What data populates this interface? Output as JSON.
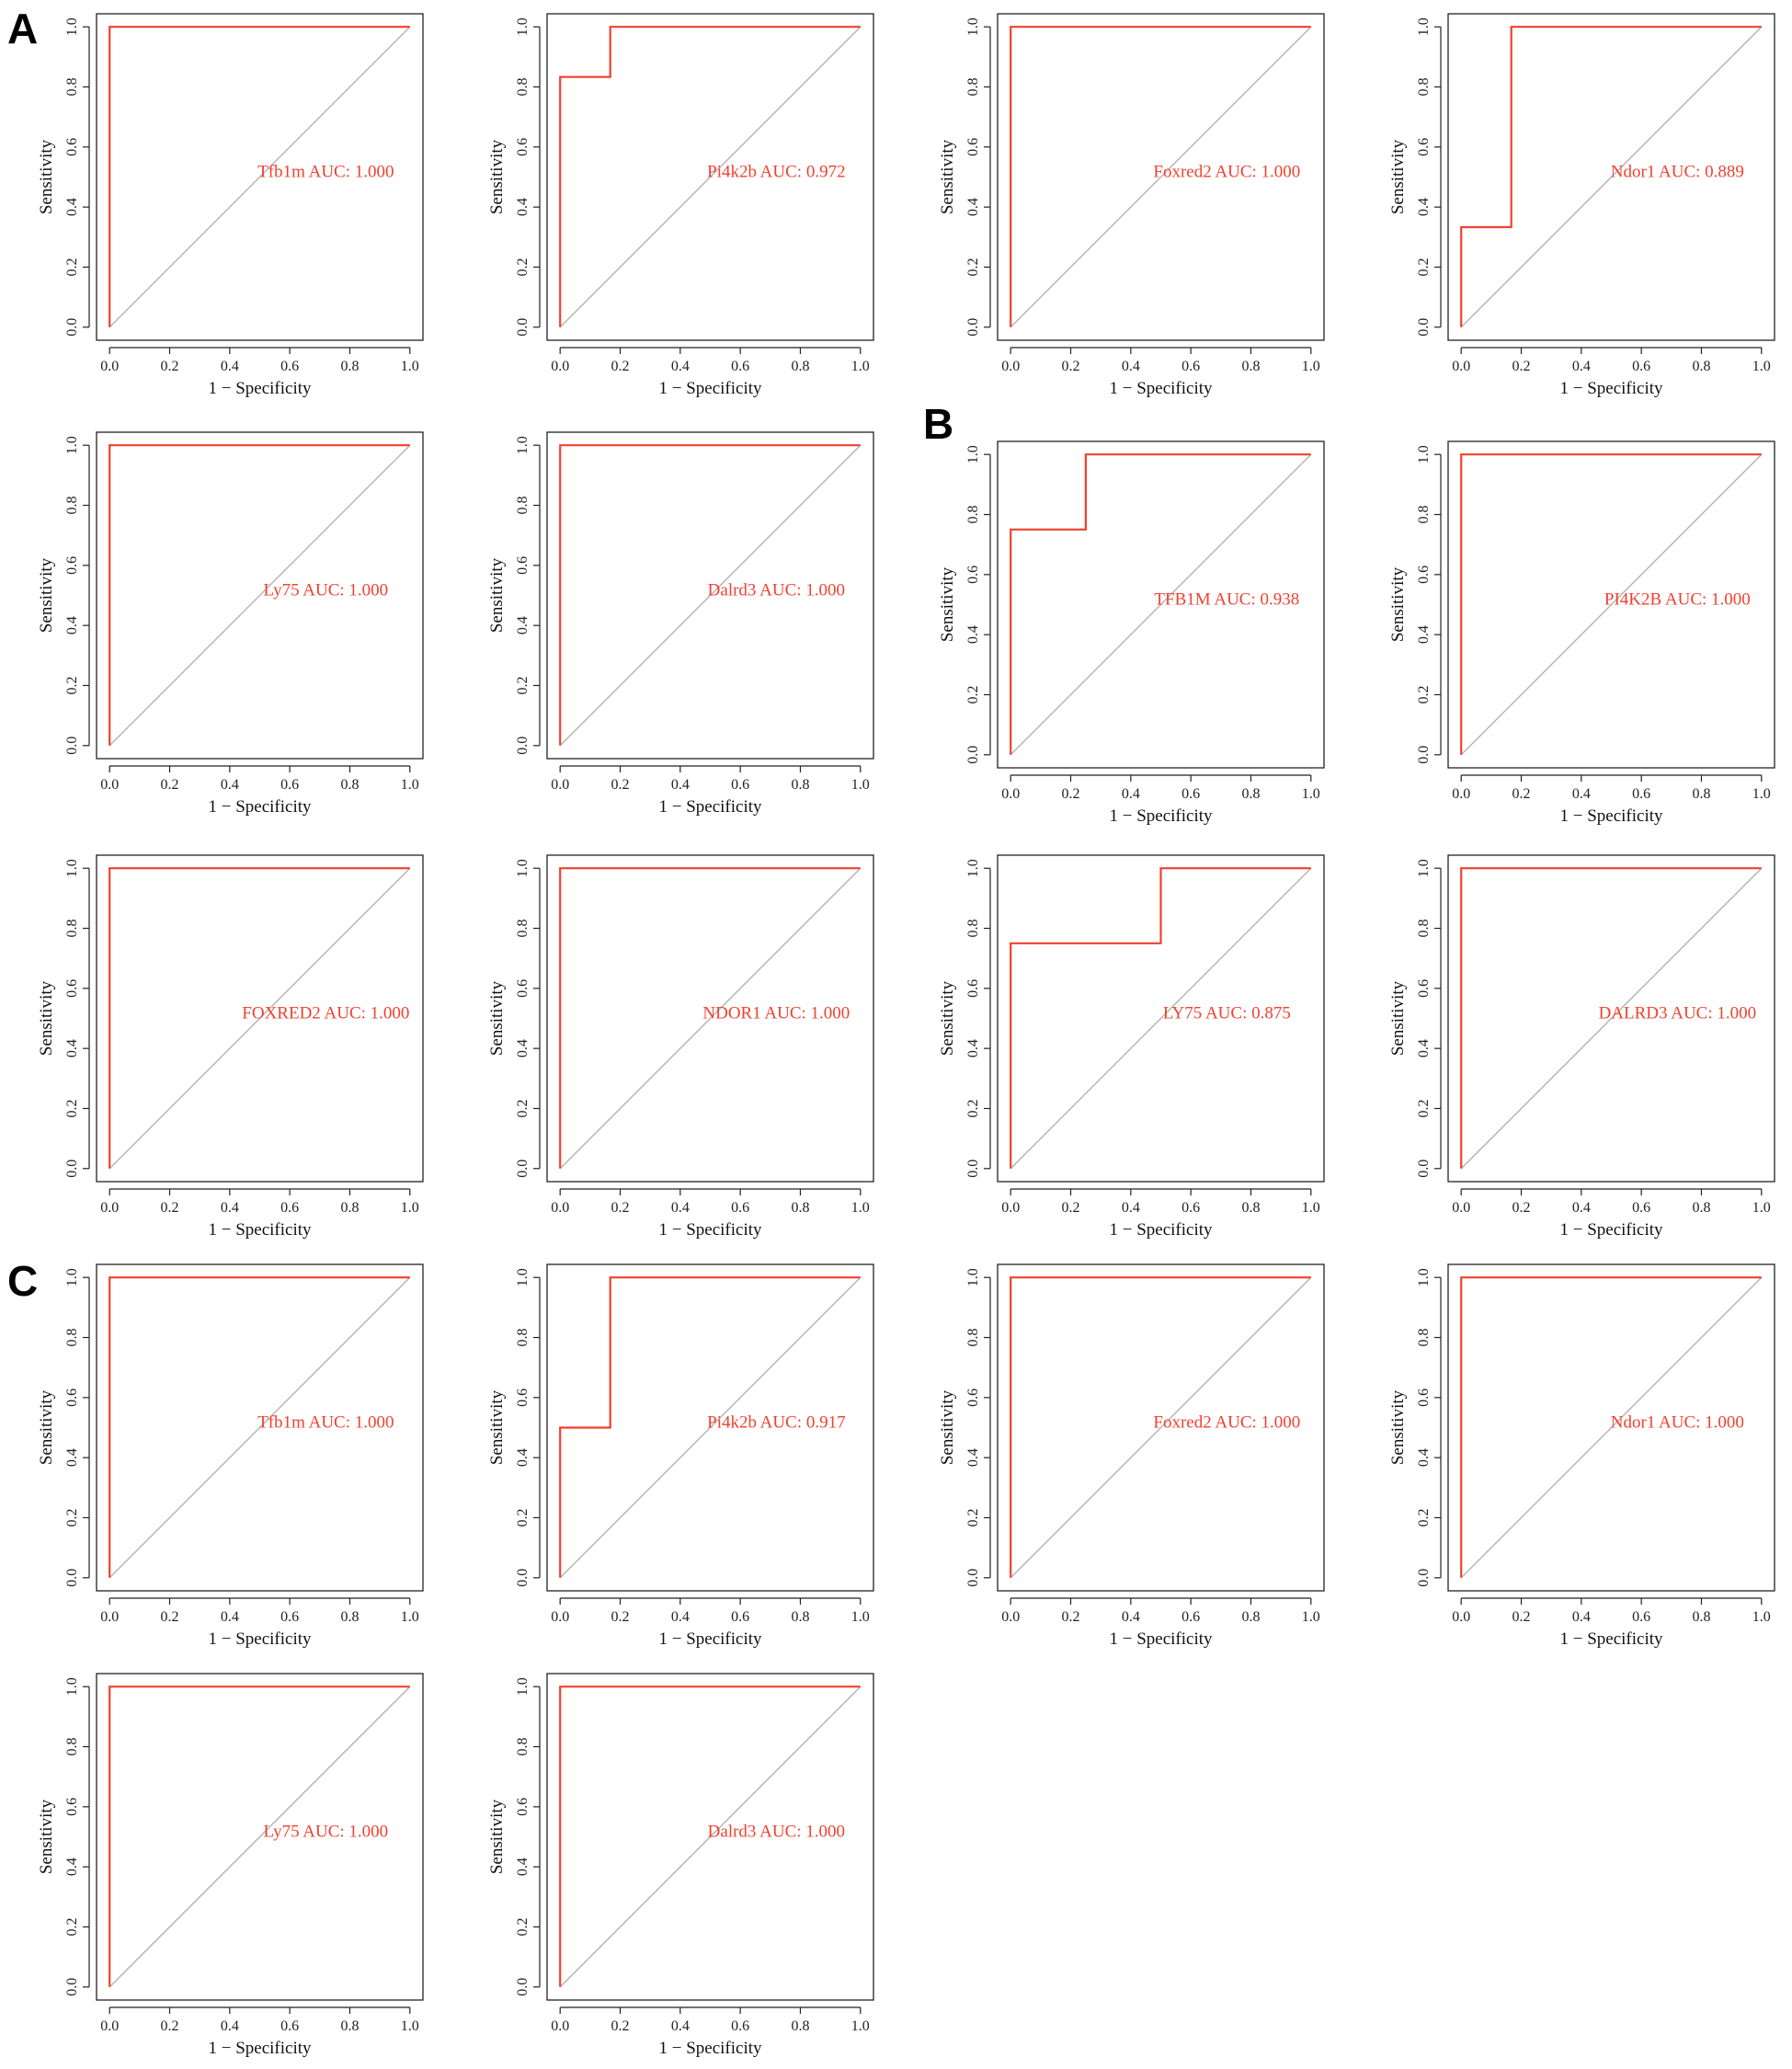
{
  "panel_labels": [
    "A",
    "B",
    "C"
  ],
  "colors": {
    "roc": "#f0412f",
    "diagonal": "#b3b3b3",
    "axis": "#222222",
    "frame": "#222222"
  },
  "chart_data": [
    {
      "type": "line",
      "panel": "A",
      "title": "",
      "xlabel": "1 − Specificity",
      "ylabel": "Sensitivity",
      "xlim": [
        0,
        1
      ],
      "ylim": [
        0,
        1
      ],
      "xticks": [
        "0.0",
        "0.2",
        "0.4",
        "0.6",
        "0.8",
        "1.0"
      ],
      "yticks": [
        "0.0",
        "0.2",
        "0.4",
        "0.6",
        "0.8",
        "1.0"
      ],
      "annotation": "Tfb1m AUC: 1.000",
      "series": [
        {
          "x": [
            0,
            0,
            1
          ],
          "y": [
            0,
            1,
            1
          ]
        }
      ],
      "reference_line": {
        "x": [
          0,
          1
        ],
        "y": [
          0,
          1
        ]
      }
    },
    {
      "type": "line",
      "panel": "A",
      "title": "",
      "xlabel": "1 − Specificity",
      "ylabel": "Sensitivity",
      "xlim": [
        0,
        1
      ],
      "ylim": [
        0,
        1
      ],
      "xticks": [
        "0.0",
        "0.2",
        "0.4",
        "0.6",
        "0.8",
        "1.0"
      ],
      "yticks": [
        "0.0",
        "0.2",
        "0.4",
        "0.6",
        "0.8",
        "1.0"
      ],
      "annotation": "Pi4k2b AUC: 0.972",
      "series": [
        {
          "x": [
            0,
            0,
            0.167,
            0.167,
            1
          ],
          "y": [
            0,
            0.833,
            0.833,
            1,
            1
          ]
        }
      ],
      "reference_line": {
        "x": [
          0,
          1
        ],
        "y": [
          0,
          1
        ]
      }
    },
    {
      "type": "line",
      "panel": "A",
      "title": "",
      "xlabel": "1 − Specificity",
      "ylabel": "Sensitivity",
      "xlim": [
        0,
        1
      ],
      "ylim": [
        0,
        1
      ],
      "xticks": [
        "0.0",
        "0.2",
        "0.4",
        "0.6",
        "0.8",
        "1.0"
      ],
      "yticks": [
        "0.0",
        "0.2",
        "0.4",
        "0.6",
        "0.8",
        "1.0"
      ],
      "annotation": "Foxred2 AUC: 1.000",
      "series": [
        {
          "x": [
            0,
            0,
            1
          ],
          "y": [
            0,
            1,
            1
          ]
        }
      ],
      "reference_line": {
        "x": [
          0,
          1
        ],
        "y": [
          0,
          1
        ]
      }
    },
    {
      "type": "line",
      "panel": "A",
      "title": "",
      "xlabel": "1 − Specificity",
      "ylabel": "Sensitivity",
      "xlim": [
        0,
        1
      ],
      "ylim": [
        0,
        1
      ],
      "xticks": [
        "0.0",
        "0.2",
        "0.4",
        "0.6",
        "0.8",
        "1.0"
      ],
      "yticks": [
        "0.0",
        "0.2",
        "0.4",
        "0.6",
        "0.8",
        "1.0"
      ],
      "annotation": "Ndor1 AUC: 0.889",
      "series": [
        {
          "x": [
            0,
            0,
            0.167,
            0.167,
            1
          ],
          "y": [
            0,
            0.333,
            0.333,
            1,
            1
          ]
        }
      ],
      "reference_line": {
        "x": [
          0,
          1
        ],
        "y": [
          0,
          1
        ]
      }
    },
    {
      "type": "line",
      "panel": "A",
      "title": "",
      "xlabel": "1 − Specificity",
      "ylabel": "Sensitivity",
      "xlim": [
        0,
        1
      ],
      "ylim": [
        0,
        1
      ],
      "xticks": [
        "0.0",
        "0.2",
        "0.4",
        "0.6",
        "0.8",
        "1.0"
      ],
      "yticks": [
        "0.0",
        "0.2",
        "0.4",
        "0.6",
        "0.8",
        "1.0"
      ],
      "annotation": "Ly75 AUC: 1.000",
      "series": [
        {
          "x": [
            0,
            0,
            1
          ],
          "y": [
            0,
            1,
            1
          ]
        }
      ],
      "reference_line": {
        "x": [
          0,
          1
        ],
        "y": [
          0,
          1
        ]
      }
    },
    {
      "type": "line",
      "panel": "A",
      "title": "",
      "xlabel": "1 − Specificity",
      "ylabel": "Sensitivity",
      "xlim": [
        0,
        1
      ],
      "ylim": [
        0,
        1
      ],
      "xticks": [
        "0.0",
        "0.2",
        "0.4",
        "0.6",
        "0.8",
        "1.0"
      ],
      "yticks": [
        "0.0",
        "0.2",
        "0.4",
        "0.6",
        "0.8",
        "1.0"
      ],
      "annotation": "Dalrd3 AUC: 1.000",
      "series": [
        {
          "x": [
            0,
            0,
            1
          ],
          "y": [
            0,
            1,
            1
          ]
        }
      ],
      "reference_line": {
        "x": [
          0,
          1
        ],
        "y": [
          0,
          1
        ]
      }
    },
    {
      "type": "line",
      "panel": "B",
      "title": "",
      "xlabel": "1 − Specificity",
      "ylabel": "Sensitivity",
      "xlim": [
        0,
        1
      ],
      "ylim": [
        0,
        1
      ],
      "xticks": [
        "0.0",
        "0.2",
        "0.4",
        "0.6",
        "0.8",
        "1.0"
      ],
      "yticks": [
        "0.0",
        "0.2",
        "0.4",
        "0.6",
        "0.8",
        "1.0"
      ],
      "annotation": "TFB1M AUC: 0.938",
      "series": [
        {
          "x": [
            0,
            0,
            0.25,
            0.25,
            1
          ],
          "y": [
            0,
            0.75,
            0.75,
            1,
            1
          ]
        }
      ],
      "reference_line": {
        "x": [
          0,
          1
        ],
        "y": [
          0,
          1
        ]
      }
    },
    {
      "type": "line",
      "panel": "B",
      "title": "",
      "xlabel": "1 − Specificity",
      "ylabel": "Sensitivity",
      "xlim": [
        0,
        1
      ],
      "ylim": [
        0,
        1
      ],
      "xticks": [
        "0.0",
        "0.2",
        "0.4",
        "0.6",
        "0.8",
        "1.0"
      ],
      "yticks": [
        "0.0",
        "0.2",
        "0.4",
        "0.6",
        "0.8",
        "1.0"
      ],
      "annotation": "PI4K2B AUC: 1.000",
      "series": [
        {
          "x": [
            0,
            0,
            1
          ],
          "y": [
            0,
            1,
            1
          ]
        }
      ],
      "reference_line": {
        "x": [
          0,
          1
        ],
        "y": [
          0,
          1
        ]
      }
    },
    {
      "type": "line",
      "panel": "B",
      "title": "",
      "xlabel": "1 − Specificity",
      "ylabel": "Sensitivity",
      "xlim": [
        0,
        1
      ],
      "ylim": [
        0,
        1
      ],
      "xticks": [
        "0.0",
        "0.2",
        "0.4",
        "0.6",
        "0.8",
        "1.0"
      ],
      "yticks": [
        "0.0",
        "0.2",
        "0.4",
        "0.6",
        "0.8",
        "1.0"
      ],
      "annotation": "FOXRED2 AUC: 1.000",
      "series": [
        {
          "x": [
            0,
            0,
            1
          ],
          "y": [
            0,
            1,
            1
          ]
        }
      ],
      "reference_line": {
        "x": [
          0,
          1
        ],
        "y": [
          0,
          1
        ]
      }
    },
    {
      "type": "line",
      "panel": "B",
      "title": "",
      "xlabel": "1 − Specificity",
      "ylabel": "Sensitivity",
      "xlim": [
        0,
        1
      ],
      "ylim": [
        0,
        1
      ],
      "xticks": [
        "0.0",
        "0.2",
        "0.4",
        "0.6",
        "0.8",
        "1.0"
      ],
      "yticks": [
        "0.0",
        "0.2",
        "0.4",
        "0.6",
        "0.8",
        "1.0"
      ],
      "annotation": "NDOR1 AUC: 1.000",
      "series": [
        {
          "x": [
            0,
            0,
            1
          ],
          "y": [
            0,
            1,
            1
          ]
        }
      ],
      "reference_line": {
        "x": [
          0,
          1
        ],
        "y": [
          0,
          1
        ]
      }
    },
    {
      "type": "line",
      "panel": "B",
      "title": "",
      "xlabel": "1 − Specificity",
      "ylabel": "Sensitivity",
      "xlim": [
        0,
        1
      ],
      "ylim": [
        0,
        1
      ],
      "xticks": [
        "0.0",
        "0.2",
        "0.4",
        "0.6",
        "0.8",
        "1.0"
      ],
      "yticks": [
        "0.0",
        "0.2",
        "0.4",
        "0.6",
        "0.8",
        "1.0"
      ],
      "annotation": "LY75 AUC: 0.875",
      "series": [
        {
          "x": [
            0,
            0,
            0.5,
            0.5,
            1
          ],
          "y": [
            0,
            0.75,
            0.75,
            1,
            1
          ]
        }
      ],
      "reference_line": {
        "x": [
          0,
          1
        ],
        "y": [
          0,
          1
        ]
      }
    },
    {
      "type": "line",
      "panel": "B",
      "title": "",
      "xlabel": "1 − Specificity",
      "ylabel": "Sensitivity",
      "xlim": [
        0,
        1
      ],
      "ylim": [
        0,
        1
      ],
      "xticks": [
        "0.0",
        "0.2",
        "0.4",
        "0.6",
        "0.8",
        "1.0"
      ],
      "yticks": [
        "0.0",
        "0.2",
        "0.4",
        "0.6",
        "0.8",
        "1.0"
      ],
      "annotation": "DALRD3 AUC: 1.000",
      "series": [
        {
          "x": [
            0,
            0,
            1
          ],
          "y": [
            0,
            1,
            1
          ]
        }
      ],
      "reference_line": {
        "x": [
          0,
          1
        ],
        "y": [
          0,
          1
        ]
      }
    },
    {
      "type": "line",
      "panel": "C",
      "title": "",
      "xlabel": "1 − Specificity",
      "ylabel": "Sensitivity",
      "xlim": [
        0,
        1
      ],
      "ylim": [
        0,
        1
      ],
      "xticks": [
        "0.0",
        "0.2",
        "0.4",
        "0.6",
        "0.8",
        "1.0"
      ],
      "yticks": [
        "0.0",
        "0.2",
        "0.4",
        "0.6",
        "0.8",
        "1.0"
      ],
      "annotation": "Tfb1m AUC: 1.000",
      "series": [
        {
          "x": [
            0,
            0,
            1
          ],
          "y": [
            0,
            1,
            1
          ]
        }
      ],
      "reference_line": {
        "x": [
          0,
          1
        ],
        "y": [
          0,
          1
        ]
      }
    },
    {
      "type": "line",
      "panel": "C",
      "title": "",
      "xlabel": "1 − Specificity",
      "ylabel": "Sensitivity",
      "xlim": [
        0,
        1
      ],
      "ylim": [
        0,
        1
      ],
      "xticks": [
        "0.0",
        "0.2",
        "0.4",
        "0.6",
        "0.8",
        "1.0"
      ],
      "yticks": [
        "0.0",
        "0.2",
        "0.4",
        "0.6",
        "0.8",
        "1.0"
      ],
      "annotation": "Pi4k2b AUC: 0.917",
      "series": [
        {
          "x": [
            0,
            0,
            0.167,
            0.167,
            1
          ],
          "y": [
            0,
            0.5,
            0.5,
            1,
            1
          ]
        }
      ],
      "reference_line": {
        "x": [
          0,
          1
        ],
        "y": [
          0,
          1
        ]
      }
    },
    {
      "type": "line",
      "panel": "C",
      "title": "",
      "xlabel": "1 − Specificity",
      "ylabel": "Sensitivity",
      "xlim": [
        0,
        1
      ],
      "ylim": [
        0,
        1
      ],
      "xticks": [
        "0.0",
        "0.2",
        "0.4",
        "0.6",
        "0.8",
        "1.0"
      ],
      "yticks": [
        "0.0",
        "0.2",
        "0.4",
        "0.6",
        "0.8",
        "1.0"
      ],
      "annotation": "Foxred2 AUC: 1.000",
      "series": [
        {
          "x": [
            0,
            0,
            1
          ],
          "y": [
            0,
            1,
            1
          ]
        }
      ],
      "reference_line": {
        "x": [
          0,
          1
        ],
        "y": [
          0,
          1
        ]
      }
    },
    {
      "type": "line",
      "panel": "C",
      "title": "",
      "xlabel": "1 − Specificity",
      "ylabel": "Sensitivity",
      "xlim": [
        0,
        1
      ],
      "ylim": [
        0,
        1
      ],
      "xticks": [
        "0.0",
        "0.2",
        "0.4",
        "0.6",
        "0.8",
        "1.0"
      ],
      "yticks": [
        "0.0",
        "0.2",
        "0.4",
        "0.6",
        "0.8",
        "1.0"
      ],
      "annotation": "Ndor1 AUC: 1.000",
      "series": [
        {
          "x": [
            0,
            0,
            1
          ],
          "y": [
            0,
            1,
            1
          ]
        }
      ],
      "reference_line": {
        "x": [
          0,
          1
        ],
        "y": [
          0,
          1
        ]
      }
    },
    {
      "type": "line",
      "panel": "C",
      "title": "",
      "xlabel": "1 − Specificity",
      "ylabel": "Sensitivity",
      "xlim": [
        0,
        1
      ],
      "ylim": [
        0,
        1
      ],
      "xticks": [
        "0.0",
        "0.2",
        "0.4",
        "0.6",
        "0.8",
        "1.0"
      ],
      "yticks": [
        "0.0",
        "0.2",
        "0.4",
        "0.6",
        "0.8",
        "1.0"
      ],
      "annotation": "Ly75 AUC: 1.000",
      "series": [
        {
          "x": [
            0,
            0,
            1
          ],
          "y": [
            0,
            1,
            1
          ]
        }
      ],
      "reference_line": {
        "x": [
          0,
          1
        ],
        "y": [
          0,
          1
        ]
      }
    },
    {
      "type": "line",
      "panel": "C",
      "title": "",
      "xlabel": "1 − Specificity",
      "ylabel": "Sensitivity",
      "xlim": [
        0,
        1
      ],
      "ylim": [
        0,
        1
      ],
      "xticks": [
        "0.0",
        "0.2",
        "0.4",
        "0.6",
        "0.8",
        "1.0"
      ],
      "yticks": [
        "0.0",
        "0.2",
        "0.4",
        "0.6",
        "0.8",
        "1.0"
      ],
      "annotation": "Dalrd3 AUC: 1.000",
      "series": [
        {
          "x": [
            0,
            0,
            1
          ],
          "y": [
            0,
            1,
            1
          ]
        }
      ],
      "reference_line": {
        "x": [
          0,
          1
        ],
        "y": [
          0,
          1
        ]
      }
    }
  ]
}
